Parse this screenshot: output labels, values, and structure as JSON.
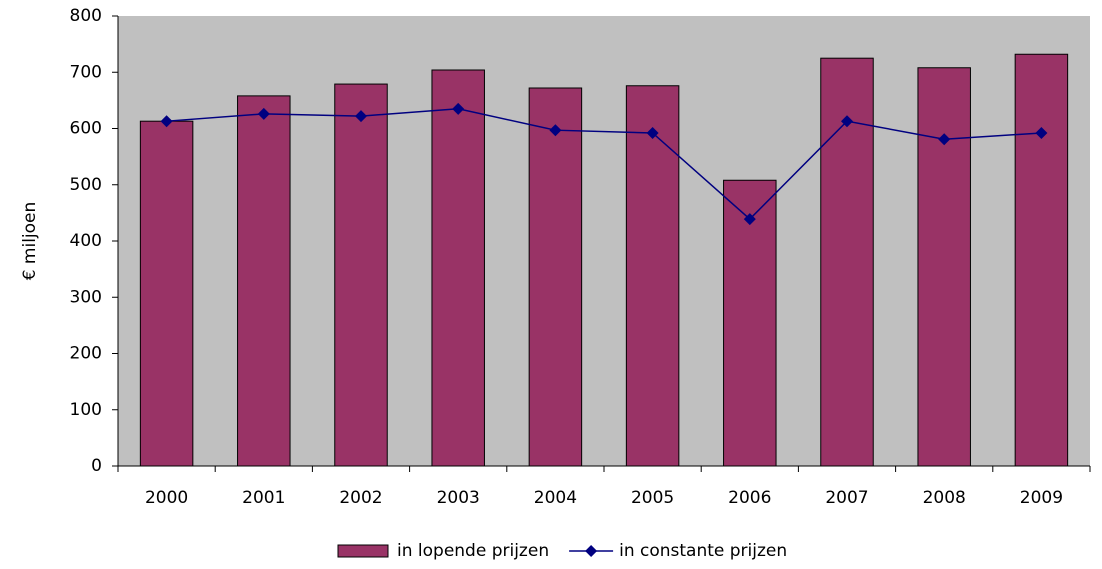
{
  "chart_data": {
    "type": "bar",
    "y_label": "€ miljoen",
    "categories": [
      "2000",
      "2001",
      "2002",
      "2003",
      "2004",
      "2005",
      "2006",
      "2007",
      "2008",
      "2009"
    ],
    "series": [
      {
        "name": "in lopende prijzen",
        "type": "bar",
        "color": "#993366",
        "values": [
          613,
          658,
          679,
          704,
          672,
          676,
          508,
          725,
          708,
          732
        ]
      },
      {
        "name": "in constante prijzen",
        "type": "line",
        "color": "#000080",
        "values": [
          613,
          626,
          622,
          635,
          597,
          592,
          439,
          613,
          581,
          592
        ]
      }
    ],
    "ylim": [
      0,
      800
    ],
    "yticks": [
      0,
      100,
      200,
      300,
      400,
      500,
      600,
      700,
      800
    ],
    "grid": false,
    "plot_background": "#c0c0c0",
    "legend": "bottom"
  }
}
